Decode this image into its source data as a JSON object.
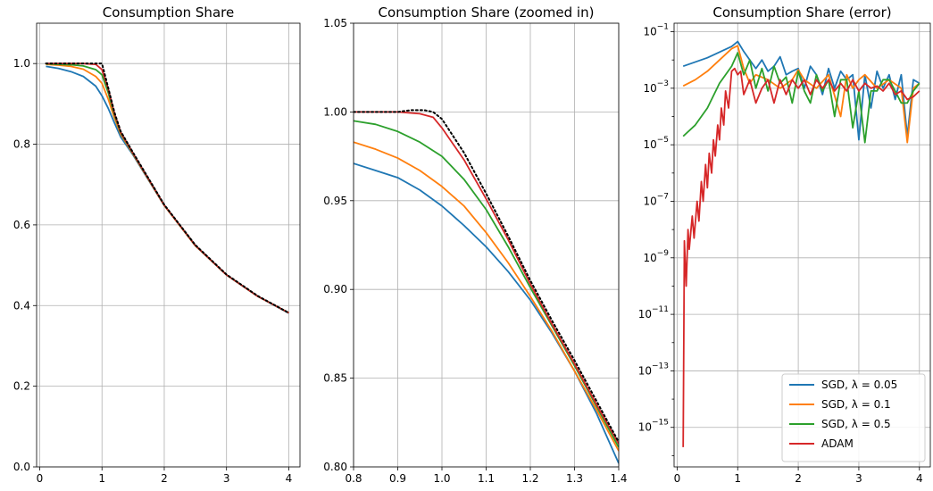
{
  "chart_data": [
    {
      "type": "line",
      "title": "Consumption Share",
      "xlim": [
        -0.05,
        4.18
      ],
      "ylim": [
        0.0,
        1.1
      ],
      "xticks": [
        0,
        1,
        2,
        3,
        4
      ],
      "xtick_labels": [
        "0",
        "1",
        "2",
        "3",
        "4"
      ],
      "yticks": [
        0.0,
        0.2,
        0.4,
        0.6,
        0.8,
        1.0
      ],
      "ytick_labels": [
        "0.0",
        "0.2",
        "0.4",
        "0.6",
        "0.8",
        "1.0"
      ],
      "grid": true,
      "series": [
        {
          "name": "SGD, λ = 0.05",
          "color": "#1f77b4",
          "style": "solid",
          "x": [
            0.1,
            0.3,
            0.5,
            0.7,
            0.9,
            1.0,
            1.1,
            1.2,
            1.3,
            1.5,
            2.0,
            2.5,
            3.0,
            3.5,
            4.0
          ],
          "y": [
            0.993,
            0.988,
            0.98,
            0.968,
            0.944,
            0.92,
            0.889,
            0.853,
            0.818,
            0.773,
            0.648,
            0.548,
            0.476,
            0.423,
            0.381
          ]
        },
        {
          "name": "SGD, λ = 0.1",
          "color": "#ff7f0e",
          "style": "solid",
          "x": [
            0.1,
            0.3,
            0.5,
            0.7,
            0.9,
            1.0,
            1.1,
            1.2,
            1.3,
            1.5,
            2.0,
            2.5,
            3.0,
            3.5,
            4.0
          ],
          "y": [
            0.998,
            0.996,
            0.993,
            0.986,
            0.968,
            0.951,
            0.912,
            0.865,
            0.825,
            0.775,
            0.648,
            0.548,
            0.476,
            0.423,
            0.382
          ]
        },
        {
          "name": "SGD, λ = 0.5",
          "color": "#2ca02c",
          "style": "solid",
          "x": [
            0.1,
            0.3,
            0.5,
            0.7,
            0.9,
            1.0,
            1.1,
            1.2,
            1.3,
            1.5,
            2.0,
            2.5,
            3.0,
            3.5,
            4.0
          ],
          "y": [
            0.999,
            0.998,
            0.997,
            0.994,
            0.985,
            0.972,
            0.928,
            0.872,
            0.828,
            0.776,
            0.649,
            0.549,
            0.476,
            0.423,
            0.382
          ]
        },
        {
          "name": "ADAM",
          "color": "#d62728",
          "style": "solid",
          "x": [
            0.1,
            0.3,
            0.5,
            0.7,
            0.9,
            1.0,
            1.1,
            1.2,
            1.3,
            1.5,
            2.0,
            2.5,
            3.0,
            3.5,
            4.0
          ],
          "y": [
            1.0,
            1.0,
            1.0,
            1.0,
            0.998,
            0.985,
            0.937,
            0.876,
            0.83,
            0.777,
            0.649,
            0.549,
            0.476,
            0.423,
            0.382
          ]
        },
        {
          "name": "",
          "color": "#000000",
          "style": "dotted",
          "x": [
            0.1,
            0.3,
            0.5,
            0.7,
            0.9,
            1.0,
            1.1,
            1.2,
            1.3,
            1.5,
            2.0,
            2.5,
            3.0,
            3.5,
            4.0
          ],
          "y": [
            1.0,
            1.0,
            1.0,
            1.0,
            1.0,
            1.0,
            0.94,
            0.879,
            0.832,
            0.779,
            0.65,
            0.55,
            0.477,
            0.424,
            0.382
          ]
        }
      ]
    },
    {
      "type": "line",
      "title": "Consumption Share (zoomed in)",
      "xlim": [
        0.8,
        1.4
      ],
      "ylim": [
        0.8,
        1.05
      ],
      "xticks": [
        0.8,
        0.9,
        1.0,
        1.1,
        1.2,
        1.3,
        1.4
      ],
      "xtick_labels": [
        "0.8",
        "0.9",
        "1.0",
        "1.1",
        "1.2",
        "1.3",
        "1.4"
      ],
      "yticks": [
        0.8,
        0.85,
        0.9,
        0.95,
        1.0,
        1.05
      ],
      "ytick_labels": [
        "0.80",
        "0.85",
        "0.90",
        "0.95",
        "1.00",
        "1.05"
      ],
      "grid": true,
      "series": [
        {
          "name": "SGD, λ = 0.05",
          "color": "#1f77b4",
          "style": "solid",
          "x": [
            0.8,
            0.85,
            0.9,
            0.95,
            1.0,
            1.05,
            1.1,
            1.15,
            1.2,
            1.25,
            1.3,
            1.35,
            1.4
          ],
          "y": [
            0.971,
            0.967,
            0.963,
            0.956,
            0.947,
            0.936,
            0.924,
            0.91,
            0.894,
            0.875,
            0.854,
            0.83,
            0.802
          ]
        },
        {
          "name": "SGD, λ = 0.1",
          "color": "#ff7f0e",
          "style": "solid",
          "x": [
            0.8,
            0.85,
            0.9,
            0.95,
            1.0,
            1.05,
            1.1,
            1.15,
            1.2,
            1.25,
            1.3,
            1.35,
            1.4
          ],
          "y": [
            0.983,
            0.979,
            0.974,
            0.967,
            0.958,
            0.947,
            0.932,
            0.915,
            0.896,
            0.876,
            0.854,
            0.832,
            0.809
          ]
        },
        {
          "name": "SGD, λ = 0.5",
          "color": "#2ca02c",
          "style": "solid",
          "x": [
            0.8,
            0.85,
            0.9,
            0.95,
            1.0,
            1.05,
            1.1,
            1.15,
            1.2,
            1.25,
            1.3,
            1.35,
            1.4
          ],
          "y": [
            0.995,
            0.993,
            0.989,
            0.983,
            0.975,
            0.962,
            0.945,
            0.924,
            0.901,
            0.879,
            0.857,
            0.834,
            0.811
          ]
        },
        {
          "name": "ADAM",
          "color": "#d62728",
          "style": "solid",
          "x": [
            0.8,
            0.85,
            0.9,
            0.95,
            0.98,
            1.0,
            1.05,
            1.1,
            1.15,
            1.2,
            1.25,
            1.3,
            1.35,
            1.4
          ],
          "y": [
            1.0,
            1.0,
            1.0,
            0.999,
            0.997,
            0.991,
            0.973,
            0.951,
            0.928,
            0.903,
            0.88,
            0.858,
            0.835,
            0.813
          ]
        },
        {
          "name": "",
          "color": "#000000",
          "style": "dotted",
          "x": [
            0.8,
            0.85,
            0.9,
            0.93,
            0.96,
            0.98,
            1.0,
            1.05,
            1.1,
            1.15,
            1.2,
            1.25,
            1.3,
            1.35,
            1.4
          ],
          "y": [
            1.0,
            1.0,
            1.0,
            1.001,
            1.001,
            1.0,
            0.996,
            0.977,
            0.954,
            0.93,
            0.905,
            0.882,
            0.86,
            0.837,
            0.814
          ]
        }
      ]
    },
    {
      "type": "line",
      "title": "Consumption Share (error)",
      "yscale": "log",
      "xlim": [
        -0.05,
        4.18
      ],
      "ylim": [
        4e-17,
        0.2
      ],
      "xticks": [
        0,
        1,
        2,
        3,
        4
      ],
      "xtick_labels": [
        "0",
        "1",
        "2",
        "3",
        "4"
      ],
      "yticks_exponent": [
        -1,
        -3,
        -5,
        -7,
        -9,
        -11,
        -13,
        -15
      ],
      "ytick_base": "10",
      "grid": true,
      "legend_position": "lower right",
      "series": [
        {
          "name": "SGD, λ = 0.05",
          "color": "#1f77b4",
          "style": "solid",
          "x": [
            0.1,
            0.5,
            0.9,
            1.0,
            1.1,
            1.3,
            1.4,
            1.5,
            1.6,
            1.7,
            1.8,
            1.9,
            2.0,
            2.1,
            2.2,
            2.3,
            2.4,
            2.5,
            2.6,
            2.7,
            2.8,
            2.9,
            3.0,
            3.1,
            3.2,
            3.3,
            3.4,
            3.5,
            3.6,
            3.7,
            3.8,
            3.9,
            4.0
          ],
          "y": [
            0.006,
            0.012,
            0.03,
            0.045,
            0.02,
            0.005,
            0.01,
            0.004,
            0.006,
            0.013,
            0.003,
            0.004,
            0.005,
            0.001,
            0.006,
            0.003,
            0.0006,
            0.005,
            0.001,
            0.004,
            0.002,
            0.003,
            1.5e-05,
            0.003,
            0.0002,
            0.004,
            0.001,
            0.003,
            0.0004,
            0.003,
            2e-05,
            0.002,
            0.0015
          ]
        },
        {
          "name": "SGD, λ = 0.1",
          "color": "#ff7f0e",
          "style": "solid",
          "x": [
            0.1,
            0.3,
            0.5,
            0.7,
            0.9,
            1.0,
            1.1,
            1.2,
            1.3,
            1.5,
            1.7,
            1.9,
            2.0,
            2.1,
            2.3,
            2.5,
            2.7,
            2.8,
            2.9,
            3.0,
            3.1,
            3.3,
            3.5,
            3.7,
            3.8,
            3.9,
            4.0
          ],
          "y": [
            0.0012,
            0.002,
            0.004,
            0.01,
            0.025,
            0.032,
            0.005,
            0.0015,
            0.003,
            0.002,
            0.001,
            0.002,
            0.0045,
            0.002,
            0.001,
            0.003,
            0.0001,
            0.003,
            0.001,
            0.002,
            0.003,
            0.001,
            0.002,
            0.001,
            1.2e-05,
            0.001,
            0.0015
          ]
        },
        {
          "name": "SGD, λ = 0.5",
          "color": "#2ca02c",
          "style": "solid",
          "x": [
            0.1,
            0.3,
            0.5,
            0.7,
            0.9,
            1.0,
            1.1,
            1.2,
            1.3,
            1.4,
            1.5,
            1.6,
            1.7,
            1.8,
            1.9,
            2.0,
            2.1,
            2.2,
            2.3,
            2.4,
            2.5,
            2.6,
            2.7,
            2.8,
            2.9,
            3.0,
            3.1,
            3.2,
            3.3,
            3.4,
            3.5,
            3.6,
            3.7,
            3.8,
            3.9,
            4.0
          ],
          "y": [
            2e-05,
            5e-05,
            0.0002,
            0.0015,
            0.006,
            0.018,
            0.003,
            0.01,
            0.001,
            0.005,
            0.0008,
            0.006,
            0.0015,
            0.0025,
            0.0003,
            0.004,
            0.0008,
            0.0003,
            0.003,
            0.0008,
            0.002,
            0.0001,
            0.002,
            0.002,
            4e-05,
            0.0008,
            1.2e-05,
            0.0008,
            0.0008,
            0.002,
            0.002,
            0.0008,
            0.0003,
            0.0003,
            0.0008,
            0.0015
          ]
        },
        {
          "name": "ADAM",
          "color": "#d62728",
          "style": "solid",
          "x": [
            0.1,
            0.12,
            0.15,
            0.18,
            0.2,
            0.25,
            0.28,
            0.33,
            0.36,
            0.4,
            0.43,
            0.47,
            0.5,
            0.53,
            0.57,
            0.6,
            0.63,
            0.67,
            0.7,
            0.73,
            0.77,
            0.8,
            0.85,
            0.9,
            0.95,
            1.0,
            1.05,
            1.1,
            1.2,
            1.3,
            1.4,
            1.5,
            1.6,
            1.7,
            1.8,
            1.9,
            2.0,
            2.1,
            2.2,
            2.3,
            2.4,
            2.5,
            2.6,
            2.7,
            2.8,
            2.9,
            3.0,
            3.1,
            3.2,
            3.3,
            3.4,
            3.5,
            3.6,
            3.7,
            3.8,
            3.9,
            4.0
          ],
          "y": [
            2e-16,
            4e-09,
            1e-10,
            1e-08,
            2e-09,
            3e-08,
            5e-09,
            1e-07,
            2e-08,
            5e-07,
            1e-07,
            2e-06,
            3e-07,
            5e-06,
            1e-06,
            1.5e-05,
            4e-06,
            5e-05,
            1.5e-05,
            0.0002,
            5e-05,
            0.0008,
            0.0002,
            0.004,
            0.005,
            0.003,
            0.004,
            0.0006,
            0.002,
            0.0003,
            0.001,
            0.002,
            0.0003,
            0.002,
            0.0006,
            0.002,
            0.001,
            0.002,
            0.0006,
            0.002,
            0.001,
            0.002,
            0.0008,
            0.0015,
            0.0008,
            0.002,
            0.0008,
            0.0015,
            0.001,
            0.0012,
            0.0008,
            0.0015,
            0.0006,
            0.0008,
            0.0004,
            0.0005,
            0.0008
          ]
        },
        {
          "name": "",
          "color": "#000000",
          "style": "none",
          "x": [],
          "y": []
        }
      ]
    }
  ]
}
